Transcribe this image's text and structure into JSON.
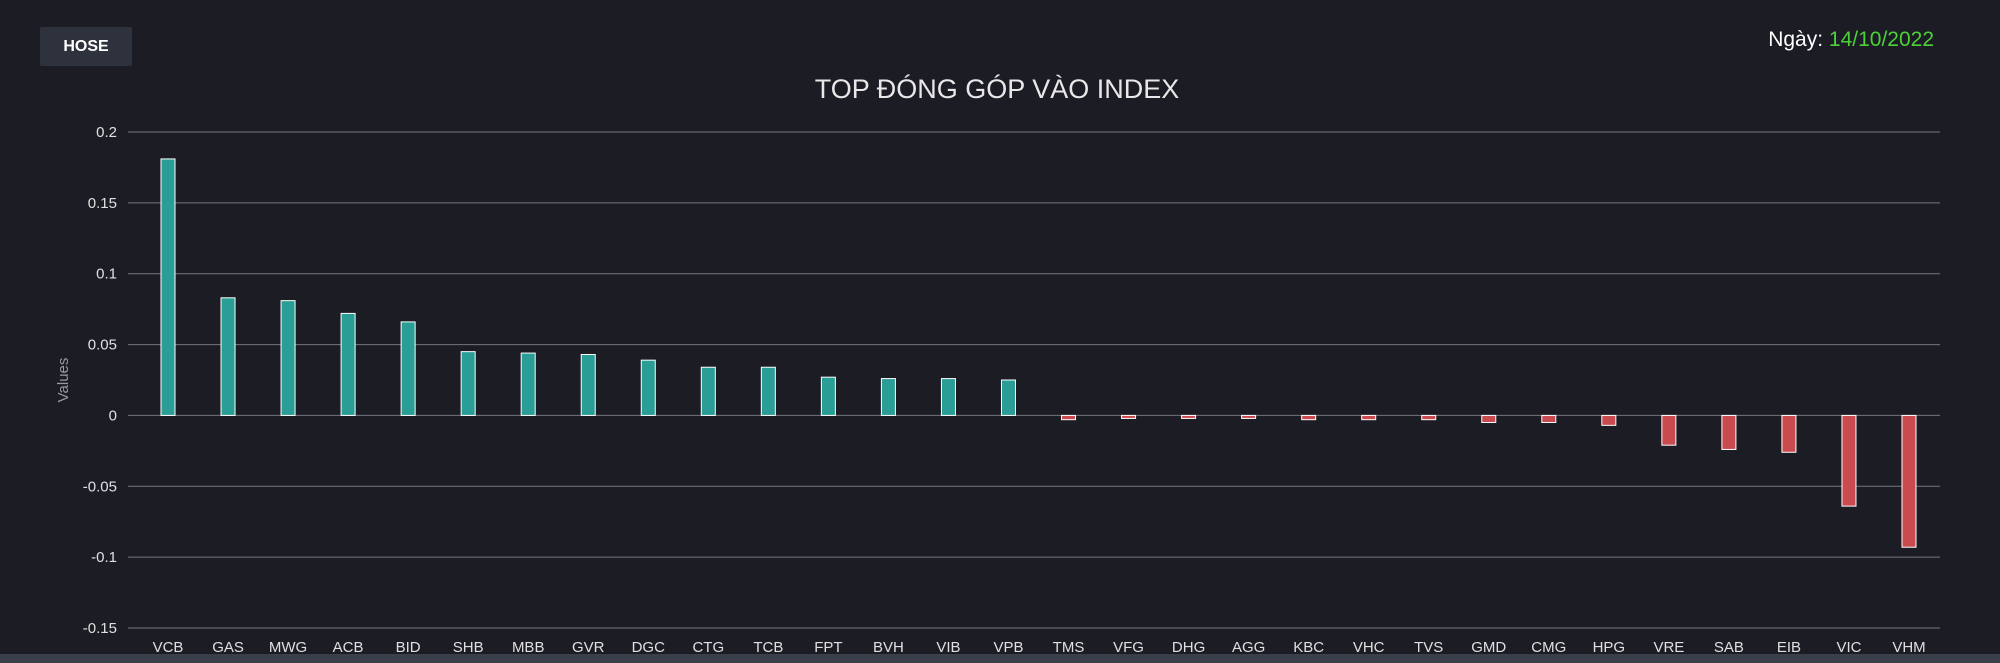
{
  "header": {
    "exchange_label": "HOSE",
    "date_label": "Ngày:",
    "date_value": "14/10/2022"
  },
  "chart_data": {
    "type": "bar",
    "title": "TOP ĐÓNG GÓP VÀO INDEX",
    "xlabel": "",
    "ylabel": "Values",
    "ylim": [
      -0.15,
      0.2
    ],
    "yticks": [
      0.2,
      0.15,
      0.1,
      0.05,
      0,
      -0.05,
      -0.1,
      -0.15
    ],
    "ytick_labels": [
      "0.2",
      "0.15",
      "0.1",
      "0.05",
      "0",
      "-0.05",
      "-0.1",
      "-0.15"
    ],
    "grid": true,
    "colors": {
      "positive": "#2a9d96",
      "negative": "#c94a4f",
      "bar_border": "#ffffff",
      "grid": "#8a8d95"
    },
    "categories": [
      "VCB",
      "GAS",
      "MWG",
      "ACB",
      "BID",
      "SHB",
      "MBB",
      "GVR",
      "DGC",
      "CTG",
      "TCB",
      "FPT",
      "BVH",
      "VIB",
      "VPB",
      "TMS",
      "VFG",
      "DHG",
      "AGG",
      "KBC",
      "VHC",
      "TVS",
      "GMD",
      "CMG",
      "HPG",
      "VRE",
      "SAB",
      "EIB",
      "VIC",
      "VHM"
    ],
    "values": [
      0.181,
      0.083,
      0.081,
      0.072,
      0.066,
      0.045,
      0.044,
      0.043,
      0.039,
      0.034,
      0.034,
      0.027,
      0.026,
      0.026,
      0.025,
      -0.003,
      -0.002,
      -0.002,
      -0.002,
      -0.003,
      -0.003,
      -0.003,
      -0.005,
      -0.005,
      -0.007,
      -0.021,
      -0.024,
      -0.026,
      -0.064,
      -0.093
    ]
  }
}
